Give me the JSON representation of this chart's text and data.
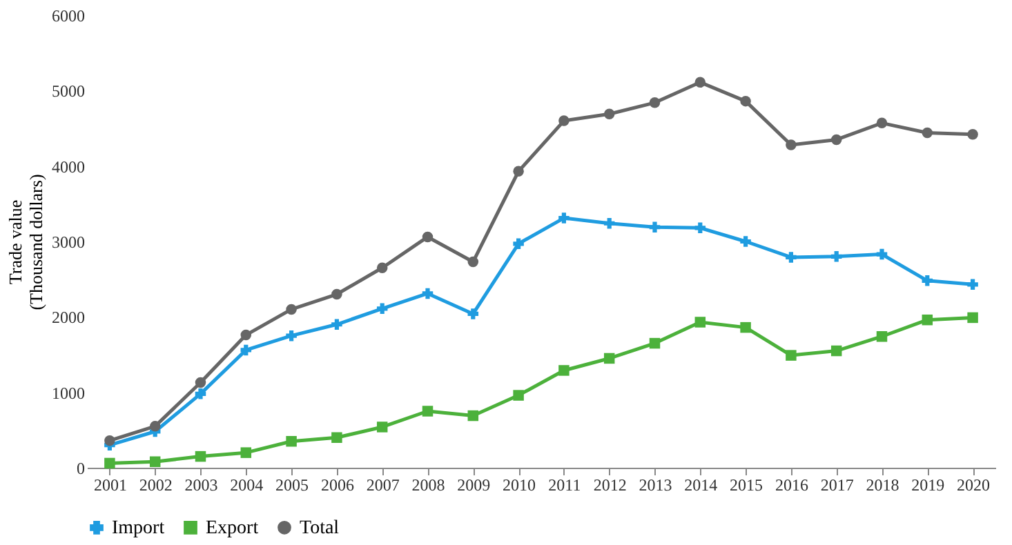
{
  "chart_data": {
    "type": "line",
    "ylabel": "Trade value\n(Thousand dollars)",
    "categories": [
      "2001",
      "2002",
      "2003",
      "2004",
      "2005",
      "2006",
      "2007",
      "2008",
      "2009",
      "2010",
      "2011",
      "2012",
      "2013",
      "2014",
      "2015",
      "2016",
      "2017",
      "2018",
      "2019",
      "2020"
    ],
    "series": [
      {
        "name": "Import",
        "color": "#1f9ce0",
        "marker": "cross",
        "values": [
          300,
          480,
          980,
          1560,
          1750,
          1900,
          2110,
          2310,
          2040,
          2970,
          3310,
          3240,
          3190,
          3180,
          3000,
          2790,
          2800,
          2830,
          2480,
          2430
        ]
      },
      {
        "name": "Export",
        "color": "#4cb13b",
        "marker": "square",
        "values": [
          60,
          80,
          150,
          200,
          350,
          400,
          540,
          750,
          690,
          960,
          1290,
          1450,
          1650,
          1930,
          1860,
          1490,
          1550,
          1740,
          1960,
          1990
        ]
      },
      {
        "name": "Total",
        "color": "#666666",
        "marker": "circle",
        "values": [
          360,
          550,
          1130,
          1760,
          2100,
          2300,
          2650,
          3060,
          2730,
          3930,
          4600,
          4690,
          4840,
          5110,
          4860,
          4280,
          4350,
          4570,
          4440,
          4420
        ]
      }
    ],
    "ylim": [
      0,
      6000
    ],
    "yticks": [
      0,
      1000,
      2000,
      3000,
      4000,
      5000,
      6000
    ],
    "grid": false,
    "legend": "bottom"
  }
}
